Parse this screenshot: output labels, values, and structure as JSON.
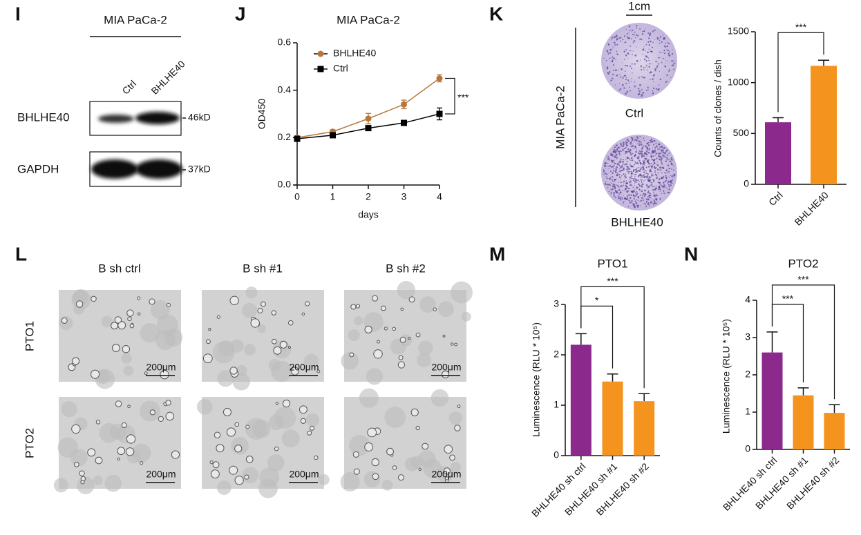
{
  "panel_labels": [
    "I",
    "J",
    "K",
    "L",
    "M",
    "N"
  ],
  "blot": {
    "title": "MIA PaCa-2",
    "lanes": [
      "Ctrl",
      "BHLHE40"
    ],
    "rows": [
      {
        "name": "BHLHE40",
        "size": "46kD"
      },
      {
        "name": "GAPDH",
        "size": "37kD"
      }
    ]
  },
  "colony": {
    "scale": "1cm",
    "cell_line": "MIA PaCa-2",
    "dishes": [
      "Ctrl",
      "BHLHE40"
    ]
  },
  "organoid": {
    "columns": [
      "B sh ctrl",
      "B sh #1",
      "B sh #2"
    ],
    "rows": [
      "PTO1",
      "PTO2"
    ],
    "scale": "200μm"
  },
  "chart_data": [
    {
      "type": "line",
      "title": "MIA PaCa-2",
      "xlabel": "days",
      "ylabel": "OD450",
      "x": [
        0,
        1,
        2,
        3,
        4
      ],
      "xlim": [
        0,
        4
      ],
      "xticks": [
        0,
        1,
        2,
        3,
        4
      ],
      "ylim": [
        0,
        0.6
      ],
      "yticks": [
        {
          "value": 0,
          "label": "0.0"
        },
        0.2,
        0.4,
        0.6
      ],
      "legend": "upper left",
      "annotation": "***",
      "series": [
        {
          "name": "BHLHE40",
          "color": "#b8773a",
          "marker": "circle",
          "values": [
            0.2,
            0.225,
            0.28,
            0.34,
            0.45
          ],
          "errors": [
            0.005,
            0.008,
            0.022,
            0.018,
            0.015
          ]
        },
        {
          "name": "Ctrl",
          "color": "#000000",
          "marker": "square",
          "values": [
            0.195,
            0.21,
            0.24,
            0.262,
            0.3
          ],
          "errors": [
            0.005,
            0.005,
            0.008,
            0.008,
            0.025
          ]
        }
      ]
    },
    {
      "type": "bar",
      "ylabel": "Counts of clones / dish",
      "categories": [
        "Ctrl",
        "BHLHE40"
      ],
      "values": [
        610,
        1165
      ],
      "errors": [
        45,
        55
      ],
      "colors": [
        "#8b2a8c",
        "#f4931e"
      ],
      "ylim": [
        0,
        1500
      ],
      "yticks": [
        0,
        500,
        1000,
        1500
      ],
      "significance": [
        {
          "from": 0,
          "to": 1,
          "label": "***"
        }
      ]
    },
    {
      "type": "bar",
      "title": "PTO1",
      "ylabel": "Luminescence (RLU * 10⁵)",
      "categories": [
        "BHLHE40 sh ctrl",
        "BHLHE40 sh #1",
        "BHLHE40 sh #2"
      ],
      "values": [
        2.2,
        1.47,
        1.08
      ],
      "errors": [
        0.22,
        0.15,
        0.15
      ],
      "colors": [
        "#8b2a8c",
        "#f4931e",
        "#f4931e"
      ],
      "ylim": [
        0,
        3
      ],
      "yticks": [
        0,
        1,
        2,
        3
      ],
      "significance": [
        {
          "from": 0,
          "to": 1,
          "label": "*"
        },
        {
          "from": 0,
          "to": 2,
          "label": "***"
        }
      ]
    },
    {
      "type": "bar",
      "title": "PTO2",
      "ylabel": "Luminescence (RLU * 10⁵)",
      "categories": [
        "BHLHE40 sh ctrl",
        "BHLHE40 sh #1",
        "BHLHE40 sh #2"
      ],
      "values": [
        2.6,
        1.45,
        0.98
      ],
      "errors": [
        0.55,
        0.2,
        0.22
      ],
      "colors": [
        "#8b2a8c",
        "#f4931e",
        "#f4931e"
      ],
      "ylim": [
        0,
        4
      ],
      "yticks": [
        0,
        1,
        2,
        3,
        4
      ],
      "significance": [
        {
          "from": 0,
          "to": 1,
          "label": "***"
        },
        {
          "from": 0,
          "to": 2,
          "label": "***"
        }
      ]
    }
  ]
}
